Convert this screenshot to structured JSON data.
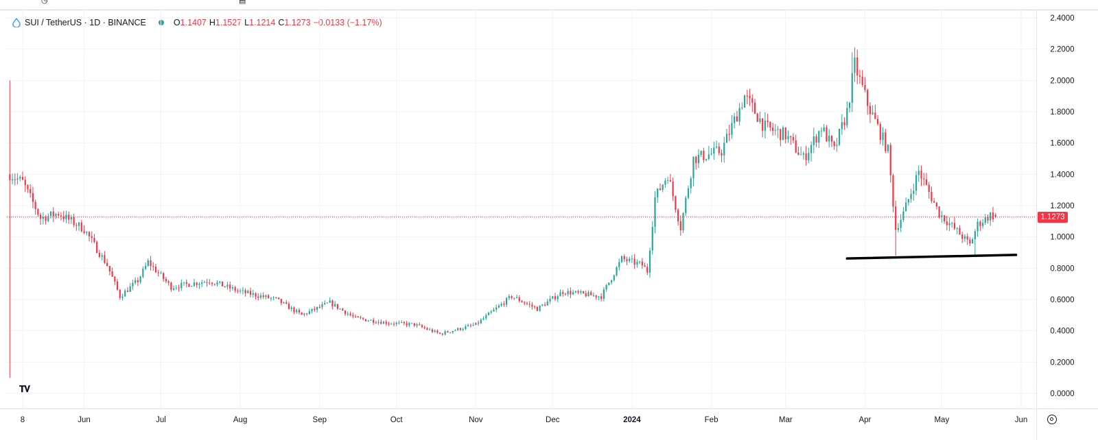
{
  "legend": {
    "symbol": "SUI / TetherUS · 1D · BINANCE",
    "open_key": "O",
    "open": "1.1407",
    "high_key": "H",
    "high": "1.1527",
    "low_key": "L",
    "low": "1.1214",
    "close_key": "C",
    "close": "1.1273",
    "change": "−0.0133 (−1.17%)"
  },
  "last_price_label": "1.1273",
  "colors": {
    "up": "#26a69a",
    "down": "#f23645",
    "support_line": "#000000",
    "grid": "#f0f3fa"
  },
  "icons": {
    "symbol": "sui-drop-icon",
    "logo": "tradingview-logo-icon",
    "settings": "gear-icon"
  },
  "chart_data": {
    "type": "candlestick",
    "title": "",
    "xlabel": "",
    "ylabel": "",
    "ylim": [
      0,
      2.4
    ],
    "grid": true,
    "y_ticks": [
      "2.4000",
      "2.2000",
      "2.0000",
      "1.8000",
      "1.6000",
      "1.4000",
      "1.2000",
      "1.0000",
      "0.8000",
      "0.6000",
      "0.4000",
      "0.2000",
      "0.0000"
    ],
    "y_tick_values": [
      2.4,
      2.2,
      2.0,
      1.8,
      1.6,
      1.4,
      1.2,
      1.0,
      0.8,
      0.6,
      0.4,
      0.2,
      0.0
    ],
    "x_ticks": [
      "8",
      "Jun",
      "Jul",
      "Aug",
      "Sep",
      "Oct",
      "Nov",
      "Dec",
      "2024",
      "Feb",
      "Mar",
      "Apr",
      "May",
      "Jun"
    ],
    "x_tick_dates": [
      "2023-05-08",
      "2023-06-01",
      "2023-07-01",
      "2023-08-01",
      "2023-09-01",
      "2023-10-01",
      "2023-11-01",
      "2023-12-01",
      "2024-01-01",
      "2024-02-01",
      "2024-03-01",
      "2024-04-01",
      "2024-05-01",
      "2024-06-01"
    ],
    "price_path": [
      [
        "2023-05-03",
        1.4
      ],
      [
        "2023-05-08",
        1.35
      ],
      [
        "2023-05-15",
        1.12
      ],
      [
        "2023-05-22",
        1.15
      ],
      [
        "2023-06-01",
        1.05
      ],
      [
        "2023-06-10",
        0.82
      ],
      [
        "2023-06-15",
        0.62
      ],
      [
        "2023-06-22",
        0.72
      ],
      [
        "2023-06-26",
        0.84
      ],
      [
        "2023-07-05",
        0.68
      ],
      [
        "2023-07-20",
        0.72
      ],
      [
        "2023-08-01",
        0.65
      ],
      [
        "2023-08-15",
        0.6
      ],
      [
        "2023-08-25",
        0.5
      ],
      [
        "2023-09-05",
        0.58
      ],
      [
        "2023-09-15",
        0.48
      ],
      [
        "2023-09-28",
        0.45
      ],
      [
        "2023-10-08",
        0.44
      ],
      [
        "2023-10-18",
        0.38
      ],
      [
        "2023-11-01",
        0.44
      ],
      [
        "2023-11-15",
        0.62
      ],
      [
        "2023-11-25",
        0.54
      ],
      [
        "2023-12-05",
        0.65
      ],
      [
        "2023-12-20",
        0.62
      ],
      [
        "2023-12-28",
        0.86
      ],
      [
        "2024-01-05",
        0.82
      ],
      [
        "2024-01-07",
        0.78
      ],
      [
        "2024-01-10",
        1.25
      ],
      [
        "2024-01-15",
        1.4
      ],
      [
        "2024-01-20",
        1.06
      ],
      [
        "2024-01-25",
        1.5
      ],
      [
        "2024-02-05",
        1.55
      ],
      [
        "2024-02-14",
        1.9
      ],
      [
        "2024-02-22",
        1.7
      ],
      [
        "2024-03-01",
        1.65
      ],
      [
        "2024-03-08",
        1.5
      ],
      [
        "2024-03-15",
        1.7
      ],
      [
        "2024-03-20",
        1.55
      ],
      [
        "2024-03-25",
        1.8
      ],
      [
        "2024-03-28",
        2.1
      ],
      [
        "2024-04-02",
        1.85
      ],
      [
        "2024-04-10",
        1.55
      ],
      [
        "2024-04-13",
        1.05
      ],
      [
        "2024-04-16",
        1.15
      ],
      [
        "2024-04-22",
        1.42
      ],
      [
        "2024-04-30",
        1.15
      ],
      [
        "2024-05-08",
        1.02
      ],
      [
        "2024-05-12",
        0.95
      ],
      [
        "2024-05-15",
        1.08
      ],
      [
        "2024-05-20",
        1.14
      ],
      [
        "2024-05-22",
        1.1273
      ]
    ],
    "last_candle": {
      "date": "2024-05-22",
      "open": 1.1407,
      "high": 1.1527,
      "low": 1.1214,
      "close": 1.1273
    },
    "last_price": 1.1273,
    "support_line": {
      "start": [
        "2024-03-25",
        0.862
      ],
      "end": [
        "2024-05-30",
        0.885
      ]
    },
    "highlighted_lows": [
      [
        "2024-04-13",
        0.88
      ],
      [
        "2024-05-14",
        0.88
      ]
    ],
    "all_time_high": [
      "2024-03-27",
      2.18
    ]
  }
}
